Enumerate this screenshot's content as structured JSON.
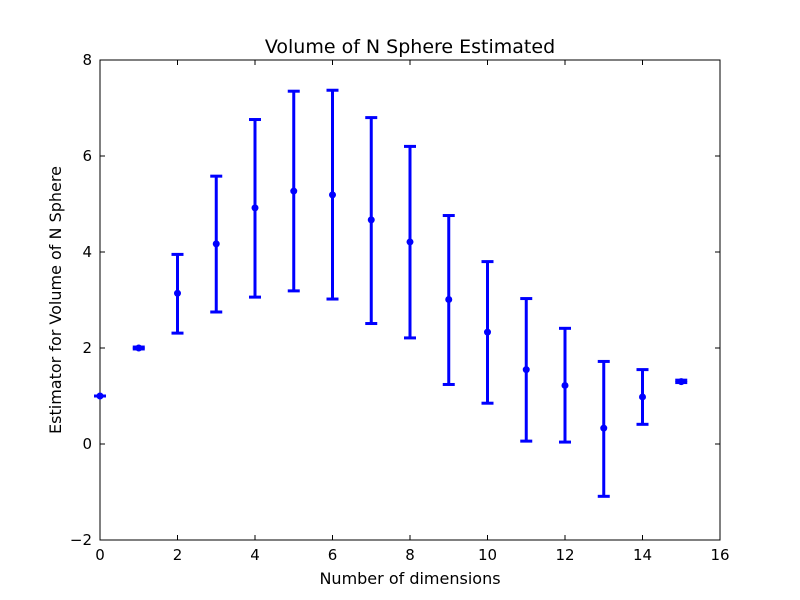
{
  "chart_data": {
    "type": "scatter",
    "title": "Volume of N Sphere Estimated",
    "xlabel": "Number of dimensions",
    "ylabel": "Estimator for Volume of N Sphere",
    "xlim": [
      0,
      16
    ],
    "ylim": [
      -2,
      8
    ],
    "xticks": [
      0,
      2,
      4,
      6,
      8,
      10,
      12,
      14,
      16
    ],
    "yticks": [
      -2,
      0,
      2,
      4,
      6,
      8
    ],
    "xtick_labels": [
      "0",
      "2",
      "4",
      "6",
      "8",
      "10",
      "12",
      "14",
      "16"
    ],
    "ytick_labels": [
      "−2",
      "0",
      "2",
      "4",
      "6",
      "8"
    ],
    "grid": false,
    "color": "#0000ff",
    "series": [
      {
        "x": [
          0,
          1,
          2,
          3,
          4,
          5,
          6,
          7,
          8,
          9,
          10,
          11,
          12,
          13,
          14,
          15
        ],
        "values": [
          1.0,
          2.0,
          3.14,
          4.17,
          4.92,
          5.27,
          5.19,
          4.67,
          4.21,
          3.01,
          2.33,
          1.55,
          1.22,
          0.33,
          0.98,
          1.3
        ],
        "error_low": [
          1.0,
          1.98,
          2.31,
          2.75,
          3.06,
          3.19,
          3.02,
          2.51,
          2.21,
          1.24,
          0.85,
          0.06,
          0.04,
          -1.09,
          0.41,
          1.28
        ],
        "error_high": [
          1.0,
          2.02,
          3.95,
          5.58,
          6.76,
          7.35,
          7.37,
          6.8,
          6.2,
          4.76,
          3.8,
          3.03,
          2.41,
          1.72,
          1.55,
          1.33
        ]
      }
    ]
  }
}
